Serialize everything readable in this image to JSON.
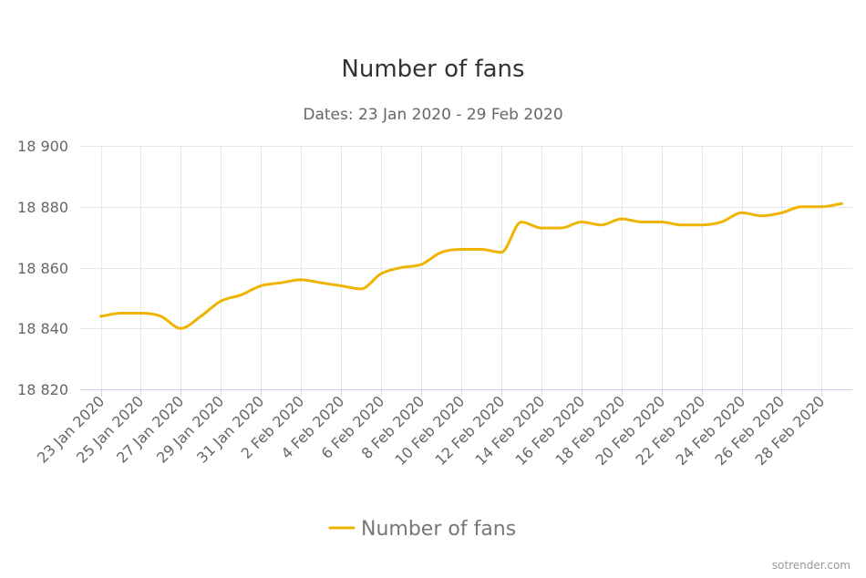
{
  "chart_data": {
    "type": "line",
    "title": "Number of fans",
    "subtitle": "Dates: 23 Jan 2020 - 29 Feb 2020",
    "ylim": [
      18820,
      18900
    ],
    "yticks": [
      18820,
      18840,
      18860,
      18880,
      18900
    ],
    "ytick_labels": [
      "18 820",
      "18 840",
      "18 860",
      "18 880",
      "18 900"
    ],
    "xtick_labels": [
      "23 Jan 2020",
      "25 Jan 2020",
      "27 Jan 2020",
      "29 Jan 2020",
      "31 Jan 2020",
      "2 Feb 2020",
      "4 Feb 2020",
      "6 Feb 2020",
      "8 Feb 2020",
      "10 Feb 2020",
      "12 Feb 2020",
      "14 Feb 2020",
      "16 Feb 2020",
      "18 Feb 2020",
      "20 Feb 2020",
      "22 Feb 2020",
      "24 Feb 2020",
      "26 Feb 2020",
      "28 Feb 2020"
    ],
    "grid": true,
    "legend_position": "bottom-center",
    "series": [
      {
        "name": "Number of fans",
        "color": "#f0b400",
        "x": [
          "23 Jan 2020",
          "24 Jan 2020",
          "25 Jan 2020",
          "26 Jan 2020",
          "27 Jan 2020",
          "28 Jan 2020",
          "29 Jan 2020",
          "30 Jan 2020",
          "31 Jan 2020",
          "1 Feb 2020",
          "2 Feb 2020",
          "3 Feb 2020",
          "4 Feb 2020",
          "5 Feb 2020",
          "6 Feb 2020",
          "7 Feb 2020",
          "8 Feb 2020",
          "9 Feb 2020",
          "10 Feb 2020",
          "11 Feb 2020",
          "12 Feb 2020",
          "13 Feb 2020",
          "14 Feb 2020",
          "15 Feb 2020",
          "16 Feb 2020",
          "17 Feb 2020",
          "18 Feb 2020",
          "19 Feb 2020",
          "20 Feb 2020",
          "21 Feb 2020",
          "22 Feb 2020",
          "23 Feb 2020",
          "24 Feb 2020",
          "25 Feb 2020",
          "26 Feb 2020",
          "27 Feb 2020",
          "28 Feb 2020",
          "29 Feb 2020"
        ],
        "values": [
          18844,
          18845,
          18845,
          18844,
          18840,
          18844,
          18849,
          18851,
          18854,
          18855,
          18856,
          18855,
          18854,
          18853,
          18858,
          18860,
          18861,
          18865,
          18866,
          18866,
          18865,
          18875,
          18873,
          18873,
          18875,
          18874,
          18876,
          18875,
          18875,
          18874,
          18874,
          18875,
          18878,
          18877,
          18878,
          18880,
          18880,
          18881
        ]
      }
    ]
  },
  "credit": "sotrender.com"
}
